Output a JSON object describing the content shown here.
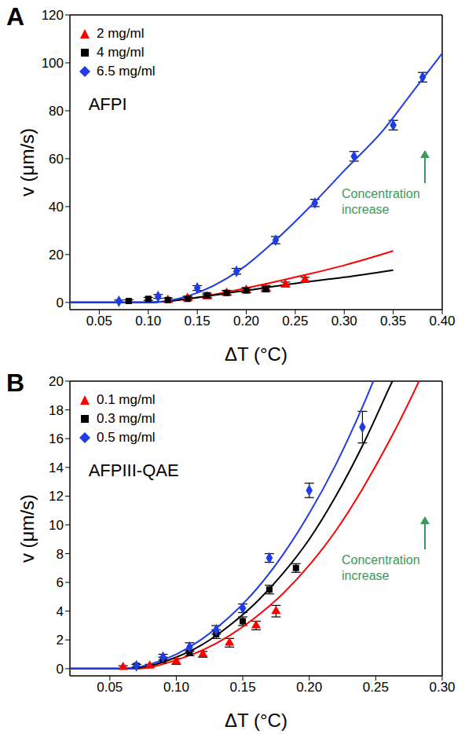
{
  "chart_data": [
    {
      "type": "scatter",
      "panel": "A",
      "x_label": "ΔT (°C)",
      "y_label": "v (μm/s)",
      "xlim": [
        0.02,
        0.4
      ],
      "xticks": [
        0.05,
        {
          "value": 0.1,
          "label": "0.10"
        },
        0.15,
        {
          "value": 0.2,
          "label": "0.20"
        },
        0.25,
        {
          "value": 0.3,
          "label": "0.30"
        },
        0.35,
        {
          "value": 0.4,
          "label": "0.40"
        }
      ],
      "ylim": [
        -3,
        120
      ],
      "yticks": [
        0,
        20,
        40,
        60,
        80,
        100,
        120
      ],
      "legend": "top-left",
      "annotations": [
        {
          "text": "AFPI"
        },
        {
          "text": "Concentration increase",
          "color": "#3a9a5c"
        }
      ],
      "series": [
        {
          "name": "2 mg/ml",
          "color": "#ff0000",
          "marker": "triangle",
          "x": [
            0.12,
            0.14,
            0.16,
            0.18,
            0.2,
            0.22,
            0.24,
            0.26
          ],
          "values": [
            1,
            1.8,
            2.5,
            4,
            5.2,
            6,
            7.5,
            9.5
          ],
          "errors": [
            0.8,
            0.8,
            0.8,
            0.9,
            1,
            1,
            1,
            1
          ],
          "fit": {
            "x": [
              0.02,
              0.1,
              0.14,
              0.2,
              0.26,
              0.3,
              0.35
            ],
            "values": [
              0,
              0,
              1.5,
              6,
              11.5,
              15.5,
              21.5
            ]
          }
        },
        {
          "name": "4 mg/ml",
          "color": "#000000",
          "marker": "square",
          "x": [
            0.08,
            0.1,
            0.12,
            0.14,
            0.16,
            0.18,
            0.2,
            0.22
          ],
          "values": [
            0.6,
            1.5,
            1,
            1.5,
            3,
            4,
            5,
            5.5
          ],
          "errors": [
            0.5,
            0.6,
            0.8,
            0.8,
            0.9,
            1,
            1,
            1
          ],
          "fit": {
            "x": [
              0.02,
              0.1,
              0.14,
              0.2,
              0.26,
              0.3,
              0.35
            ],
            "values": [
              0,
              0,
              1.5,
              5,
              8.5,
              10.5,
              13.5
            ]
          }
        },
        {
          "name": "6.5 mg/ml",
          "color": "#1f3de6",
          "marker": "diamond",
          "x": [
            0.07,
            0.11,
            0.15,
            0.19,
            0.23,
            0.27,
            0.31,
            0.35,
            0.38
          ],
          "values": [
            0.5,
            2.5,
            6,
            13,
            26,
            41.5,
            61,
            74,
            94
          ],
          "errors": [
            0.5,
            0.8,
            1,
            1.2,
            1.5,
            1.5,
            2,
            2,
            2
          ],
          "fit": {
            "x": [
              0.02,
              0.1,
              0.13,
              0.15,
              0.18,
              0.2,
              0.23,
              0.27,
              0.3,
              0.34,
              0.37,
              0.4
            ],
            "values": [
              0,
              0,
              1.5,
              4,
              10,
              15.5,
              26,
              42,
              55,
              72,
              88,
              104
            ]
          }
        }
      ]
    },
    {
      "type": "scatter",
      "panel": "B",
      "x_label": "ΔT (°C)",
      "y_label": "v (μm/s)",
      "xlim": [
        0.02,
        0.3
      ],
      "xticks": [
        0.05,
        {
          "value": 0.1,
          "label": "0.10"
        },
        0.15,
        {
          "value": 0.2,
          "label": "0.20"
        },
        0.25,
        {
          "value": 0.3,
          "label": "0.30"
        }
      ],
      "ylim": [
        -0.5,
        20
      ],
      "yticks": [
        0,
        2,
        4,
        6,
        8,
        10,
        12,
        14,
        16,
        18,
        20
      ],
      "legend": "top-left",
      "annotations": [
        {
          "text": "AFPIII-QAE"
        },
        {
          "text": "Concentration increase",
          "color": "#3a9a5c"
        }
      ],
      "series": [
        {
          "name": "0.1 mg/ml",
          "color": "#ff0000",
          "marker": "triangle",
          "x": [
            0.06,
            0.08,
            0.1,
            0.12,
            0.14,
            0.16,
            0.175
          ],
          "values": [
            0.1,
            0.2,
            0.5,
            1,
            1.8,
            3,
            4
          ],
          "errors": [
            0.1,
            0.1,
            0.2,
            0.2,
            0.3,
            0.3,
            0.4
          ],
          "fit": {
            "x": [
              0.02,
              0.07,
              0.1,
              0.12,
              0.14,
              0.16,
              0.18,
              0.2,
              0.22,
              0.24,
              0.26,
              0.28,
              0.285
            ],
            "values": [
              0,
              0,
              0.6,
              1.3,
              2.3,
              3.6,
              5.2,
              7.2,
              9.6,
              12.5,
              15.8,
              19.5,
              20.5
            ]
          }
        },
        {
          "name": "0.3 mg/ml",
          "color": "#000000",
          "marker": "square",
          "x": [
            0.07,
            0.09,
            0.11,
            0.13,
            0.15,
            0.17,
            0.19
          ],
          "values": [
            0.2,
            0.6,
            1.1,
            2.4,
            3.3,
            5.5,
            7
          ],
          "errors": [
            0.1,
            0.2,
            0.2,
            0.3,
            0.3,
            0.3,
            0.3
          ],
          "fit": {
            "x": [
              0.02,
              0.06,
              0.08,
              0.1,
              0.12,
              0.14,
              0.16,
              0.18,
              0.2,
              0.22,
              0.24,
              0.26,
              0.265
            ],
            "values": [
              0,
              0,
              0.2,
              0.8,
              1.7,
              3,
              4.6,
              6.6,
              9,
              12,
              15.5,
              19.5,
              20.5
            ]
          }
        },
        {
          "name": "0.5 mg/ml",
          "color": "#1f3de6",
          "marker": "diamond",
          "x": [
            0.07,
            0.09,
            0.11,
            0.13,
            0.15,
            0.17,
            0.2,
            0.24
          ],
          "values": [
            0.2,
            0.8,
            1.5,
            2.7,
            4.2,
            7.7,
            12.4,
            16.8
          ],
          "errors": [
            0.1,
            0.2,
            0.3,
            0.3,
            0.3,
            0.3,
            0.5,
            1.1
          ],
          "fit": {
            "x": [
              0.02,
              0.06,
              0.08,
              0.1,
              0.12,
              0.14,
              0.16,
              0.18,
              0.2,
              0.22,
              0.24,
              0.25
            ],
            "values": [
              0,
              0,
              0.3,
              1,
              2.1,
              3.6,
              5.5,
              7.9,
              10.8,
              14.2,
              18.2,
              20.4
            ]
          }
        }
      ]
    }
  ]
}
